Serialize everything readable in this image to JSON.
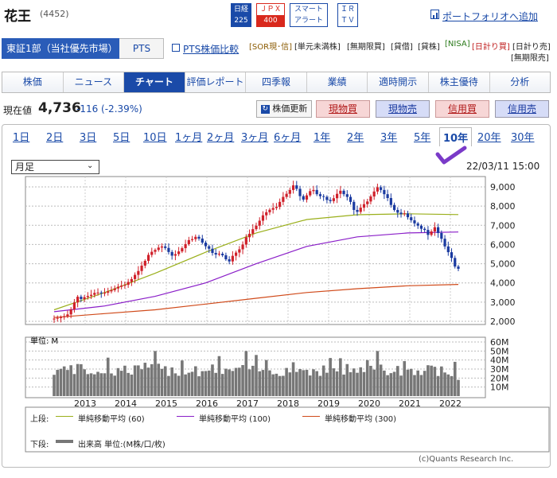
{
  "header": {
    "name": "花王",
    "code": "(4452)",
    "badges": [
      {
        "top": "日経",
        "bottom": "225"
      },
      {
        "top": "ＪＰＸ",
        "bottom": "400"
      },
      {
        "top": "スマート",
        "bottom": "アラート"
      },
      {
        "top": "ＩＲ",
        "bottom": "ＴＶ"
      }
    ],
    "portfolio_link": "ポートフォリオへ追加"
  },
  "market": {
    "active": "東証1部（当社優先市場）",
    "pts": "PTS",
    "pts_compare": "PTS株価比較",
    "tags_row1": [
      "[SOR現･信]",
      "[単元未満株]",
      "[無期限買]",
      "[貸借]",
      "[貸株]",
      "[NISA]",
      "[日計り買]",
      "[日計り売]"
    ],
    "tags_row2": [
      "[無期限売]"
    ],
    "tag_colors": {
      "sor": "#8a5a00",
      "nisa": "#2a7a1a",
      "hikaku": "#c02020",
      "default": "#333333"
    }
  },
  "tabs": [
    "株価",
    "ニュース",
    "チャート",
    "評価レポート",
    "四季報",
    "業績",
    "適時開示",
    "株主優待",
    "分析"
  ],
  "active_tab": "チャート",
  "quote": {
    "label": "現在値",
    "price": "4,736",
    "change": "-116 (-2.39%)",
    "refresh": "株価更新",
    "buttons": [
      {
        "label": "現物買",
        "color": "#f7d6d6"
      },
      {
        "label": "現物売",
        "color": "#d6dcf7"
      },
      {
        "label": "信用買",
        "color": "#f7d6d6"
      },
      {
        "label": "信用売",
        "color": "#d6dcf7"
      }
    ]
  },
  "periods": [
    "1日",
    "2日",
    "3日",
    "5日",
    "10日",
    "1ヶ月",
    "2ヶ月",
    "3ヶ月",
    "6ヶ月",
    "1年",
    "2年",
    "3年",
    "5年",
    "10年",
    "20年",
    "30年"
  ],
  "active_period": "10年",
  "chart_controls": {
    "select_value": "月足",
    "datetime": "22/03/11 15:00"
  },
  "chart_data": {
    "type": "line",
    "subtype": "candlestick-monthly",
    "x_ticks": [
      "2013",
      "2014",
      "2015",
      "2016",
      "2017",
      "2018",
      "2019",
      "2020",
      "2021",
      "2022"
    ],
    "price_axis": {
      "ticks": [
        "9,000",
        "8,000",
        "7,000",
        "6,000",
        "5,000",
        "4,000",
        "3,000",
        "2,000"
      ],
      "ylim": [
        2000,
        9000
      ]
    },
    "volume_axis": {
      "unit_label": "単位: M",
      "ticks": [
        "60M",
        "50M",
        "40M",
        "30M",
        "20M",
        "10M"
      ],
      "ylim": [
        0,
        60
      ]
    },
    "monthly_close": [
      2140,
      2180,
      2210,
      2260,
      2360,
      2620,
      2980,
      3280,
      3160,
      3260,
      3320,
      3380,
      3480,
      3500,
      3470,
      3490,
      3560,
      3620,
      3710,
      3800,
      3860,
      3900,
      4050,
      4200,
      4420,
      4620,
      4900,
      5150,
      5460,
      5620,
      5720,
      5840,
      5900,
      5820,
      5610,
      5420,
      5500,
      5640,
      5810,
      6020,
      6230,
      6280,
      6400,
      6310,
      6100,
      5910,
      5780,
      5560,
      5480,
      5520,
      5440,
      5230,
      5120,
      5410,
      5580,
      5750,
      6000,
      6380,
      6560,
      6800,
      6980,
      7240,
      7520,
      7680,
      7810,
      7900,
      7960,
      8220,
      8480,
      8640,
      8840,
      9080,
      8900,
      8520,
      8340,
      8560,
      8780,
      8840,
      8620,
      8520,
      8480,
      8320,
      8260,
      8410,
      8640,
      8800,
      8620,
      8480,
      8220,
      7800,
      7700,
      7920,
      8100,
      8240,
      8500,
      8760,
      8980,
      8840,
      8620,
      8420,
      8060,
      7800,
      7660,
      7580,
      7620,
      7420,
      7260,
      7100,
      6980,
      6820,
      6760,
      6500,
      6680,
      6900,
      6600,
      6300,
      5900,
      5600,
      5300,
      4852,
      4736
    ],
    "series": [
      {
        "name": "単純移動平均 (60)",
        "color": "#9aaf1a",
        "values": [
          2600,
          3500,
          4500,
          5600,
          6600,
          7300,
          7550,
          7600,
          7560
        ]
      },
      {
        "name": "単純移動平均 (100)",
        "color": "#8a1ec8",
        "values": [
          2500,
          2800,
          3300,
          4000,
          5000,
          5900,
          6400,
          6600,
          6650
        ]
      },
      {
        "name": "単純移動平均 (300)",
        "color": "#d04a1a",
        "values": [
          2200,
          2400,
          2600,
          2900,
          3200,
          3500,
          3700,
          3850,
          3920
        ]
      }
    ],
    "volume_series": {
      "name": "出来高 単位:(M株/口/枚)",
      "color": "#777777"
    },
    "legend": {
      "upper_label": "上段:",
      "lower_label": "下段:",
      "ma60": "単純移動平均 (60)",
      "ma100": "単純移動平均 (100)",
      "ma300": "単純移動平均 (300)",
      "volume": "出来高 単位:(M株/口/枚)"
    },
    "candle_colors": {
      "up": "#d0202a",
      "down": "#1a3aa0"
    }
  },
  "footer": {
    "copyright": "(c)Quants Research Inc."
  }
}
